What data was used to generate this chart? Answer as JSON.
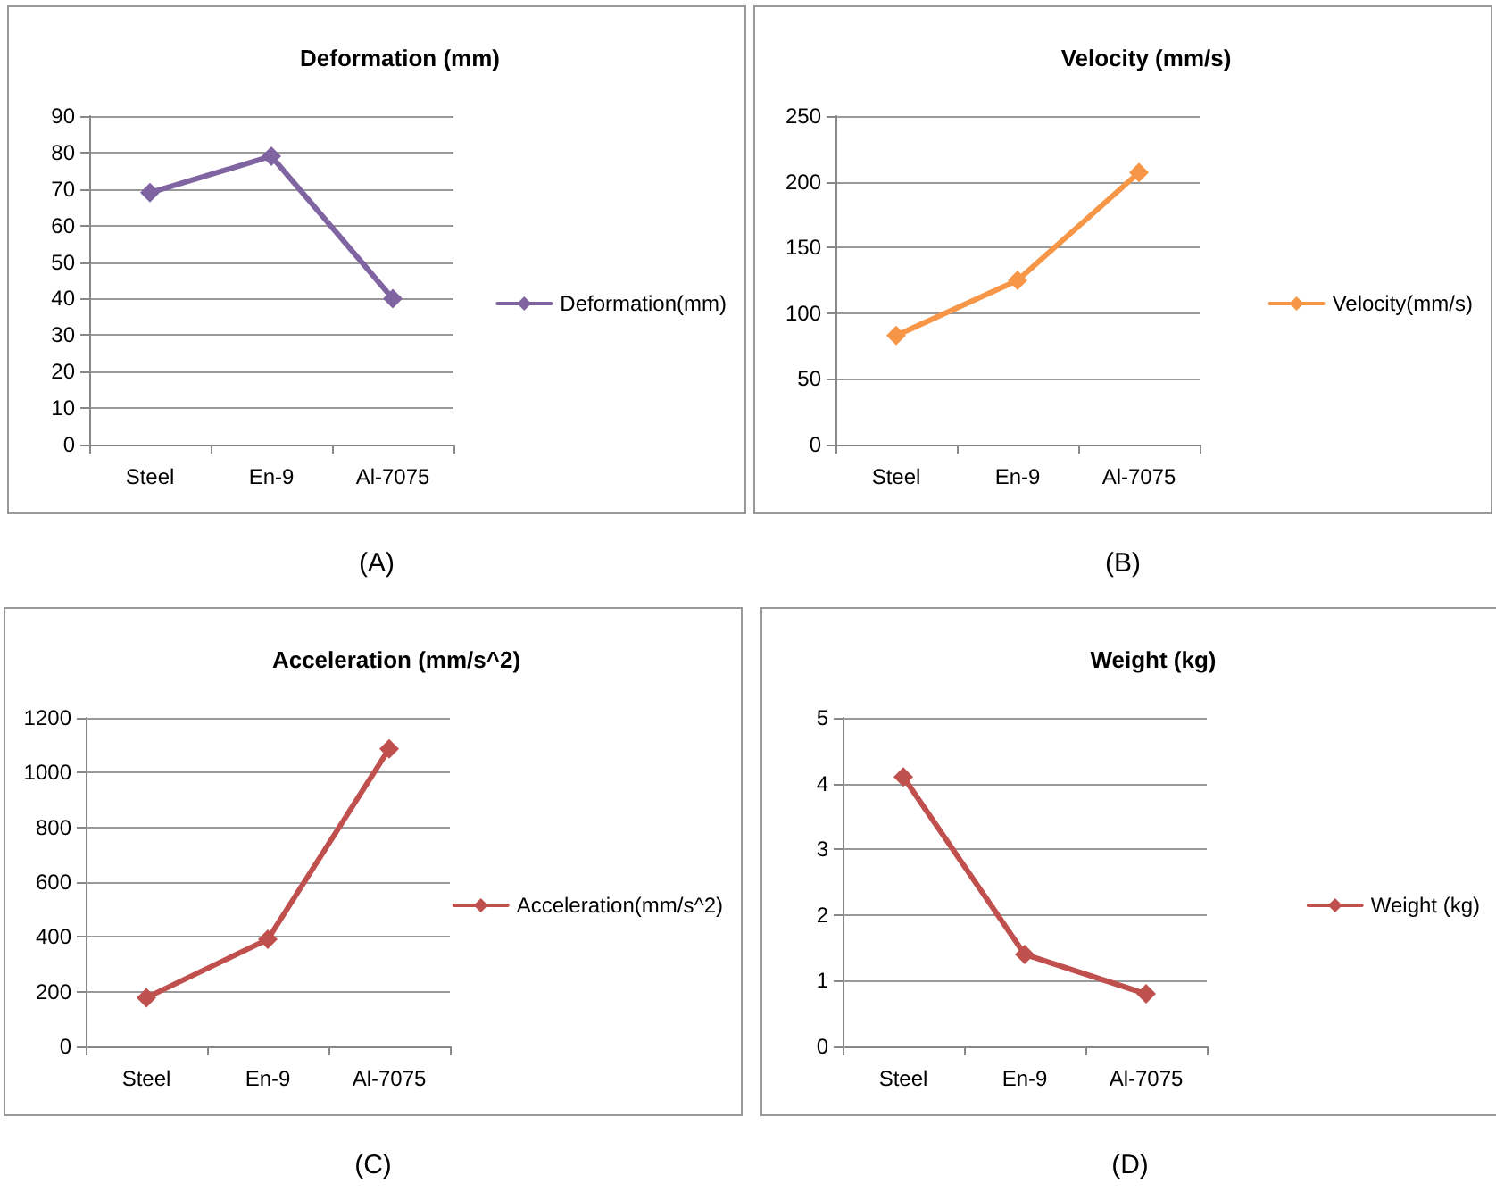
{
  "chart_data": [
    {
      "type": "line",
      "title": "Deformation (mm)",
      "categories": [
        "Steel",
        "En-9",
        "Al-7075"
      ],
      "series": [
        {
          "name": "Deformation(mm)",
          "color": "#8064a2",
          "values": [
            69,
            79,
            40
          ]
        }
      ],
      "ylim": [
        0,
        90
      ],
      "yticks": [
        0,
        10,
        20,
        30,
        40,
        50,
        60,
        70,
        80,
        90
      ],
      "grid": "y",
      "legend": "right",
      "marker": "diamond",
      "annotations": [
        "(A)"
      ]
    },
    {
      "type": "line",
      "title": "Velocity (mm/s)",
      "categories": [
        "Steel",
        "En-9",
        "Al-7075"
      ],
      "series": [
        {
          "name": "Velocity(mm/s)",
          "color": "#f79646",
          "values": [
            83,
            125,
            207
          ]
        }
      ],
      "ylim": [
        0,
        250
      ],
      "yticks": [
        0,
        50,
        100,
        150,
        200,
        250
      ],
      "grid": "y",
      "legend": "right",
      "marker": "diamond",
      "annotations": [
        "(B)"
      ]
    },
    {
      "type": "line",
      "title": "Acceleration (mm/s^2)",
      "categories": [
        "Steel",
        "En-9",
        "Al-7075"
      ],
      "series": [
        {
          "name": "Acceleration(mm/s^2)",
          "color": "#c0504d",
          "values": [
            178,
            391,
            1087
          ]
        }
      ],
      "ylim": [
        0,
        1200
      ],
      "yticks": [
        0,
        200,
        400,
        600,
        800,
        1000,
        1200
      ],
      "grid": "y",
      "legend": "right",
      "marker": "diamond",
      "annotations": [
        "(C)"
      ]
    },
    {
      "type": "line",
      "title": "Weight (kg)",
      "categories": [
        "Steel",
        "En-9",
        "Al-7075"
      ],
      "series": [
        {
          "name": "Weight (kg)",
          "color": "#c0504d",
          "values": [
            4.1,
            1.4,
            0.8
          ]
        }
      ],
      "ylim": [
        0,
        5
      ],
      "yticks": [
        0,
        1,
        2,
        3,
        4,
        5
      ],
      "grid": "y",
      "legend": "right",
      "marker": "diamond",
      "annotations": [
        "(D)"
      ]
    }
  ]
}
